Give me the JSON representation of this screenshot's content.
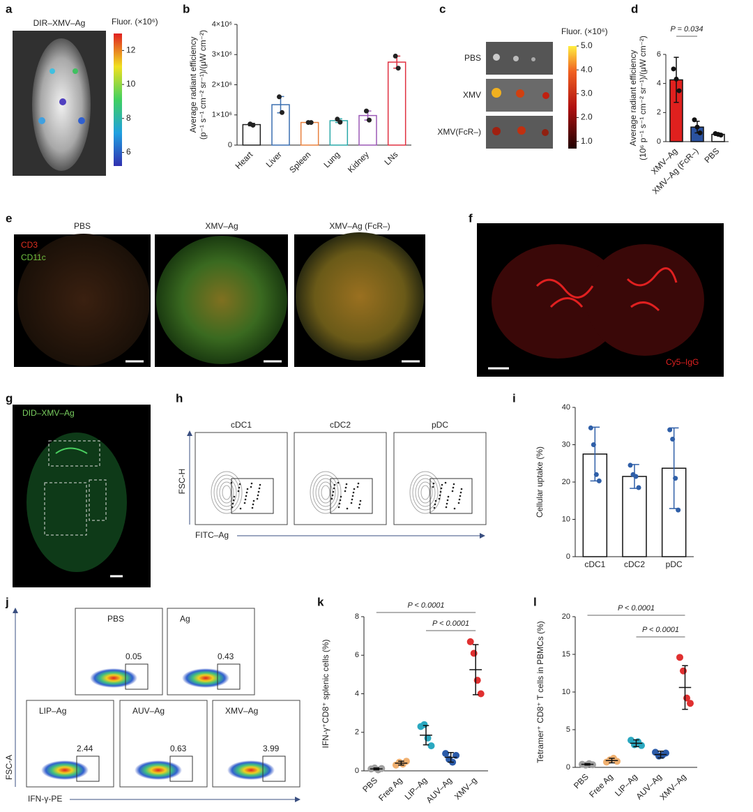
{
  "panels": {
    "a": {
      "label": "a",
      "title": "DIR–XMV–Ag",
      "colorbar": {
        "title": "Fluor. (×10⁶)",
        "lim": [
          5.2,
          13
        ],
        "ticks": [
          6,
          8,
          10,
          12
        ]
      }
    },
    "c": {
      "label": "c",
      "rows": [
        "PBS",
        "XMV",
        "XMV(FcR–)"
      ],
      "colorbar": {
        "title": "Fluor. (×10⁶)",
        "lim": [
          0.7,
          5.0
        ],
        "ticks": [
          {
            "value": 1,
            "label": "1.0"
          },
          {
            "value": 2,
            "label": "2.0"
          },
          {
            "value": 3,
            "label": "3.0"
          },
          {
            "value": 4,
            "label": "4.0"
          },
          {
            "value": 5,
            "label": "5.0"
          }
        ]
      }
    },
    "e": {
      "label": "e",
      "titles": [
        "PBS",
        "XMV–Ag",
        "XMV–Ag (FcR–)"
      ],
      "stains": [
        "CD3",
        "CD11c"
      ]
    },
    "f": {
      "label": "f",
      "stain": "Cy5–IgG"
    },
    "g": {
      "label": "g",
      "title": "DID–XMV–Ag"
    },
    "h": {
      "label": "h",
      "titles": [
        "cDC1",
        "cDC2",
        "pDC"
      ],
      "ylabel": "FSC-H",
      "xlabel": "FITC–Ag"
    },
    "j": {
      "label": "j",
      "plots": [
        {
          "name": "PBS",
          "value": 0.05
        },
        {
          "name": "Ag",
          "value": 0.43
        },
        {
          "name": "LIP–Ag",
          "value": 2.44
        },
        {
          "name": "AUV–Ag",
          "value": 0.63
        },
        {
          "name": "XMV–Ag",
          "value": 3.99
        }
      ],
      "ylabel": "FSC-A",
      "xlabel": "IFN-γ-PE"
    }
  },
  "chart_data": [
    {
      "type": "bar",
      "panel_label": "b",
      "ylabel": [
        "Average radiant efficiency",
        "(p⁻¹ s⁻¹ cm⁻² sr⁻¹)/(μW cm⁻²)"
      ],
      "categories": [
        "Heart",
        "Liver",
        "Spleen",
        "Lung",
        "Kidney",
        "LNs"
      ],
      "values": [
        680000,
        1340000,
        750000,
        810000,
        980000,
        2750000
      ],
      "errors": [
        40000,
        270000,
        10000,
        60000,
        150000,
        200000
      ],
      "points": [
        [
          700000,
          660000
        ],
        [
          1600000,
          1080000
        ],
        [
          750000,
          750000
        ],
        [
          860000,
          760000
        ],
        [
          1130000,
          830000
        ],
        [
          2950000,
          2550000
        ]
      ],
      "colors": [
        "#222222",
        "#3a6fb0",
        "#e8803e",
        "#2aa9a9",
        "#9b59b6",
        "#e03040"
      ],
      "bar_fill": false,
      "point_color": "#222222",
      "ylim": [
        0,
        4000000
      ],
      "yticks": [
        0,
        {
          "value": 1000000,
          "label": "1×10⁶"
        },
        {
          "value": 2000000,
          "label": "2×10⁶"
        },
        {
          "value": 3000000,
          "label": "3×10⁶"
        },
        {
          "value": 4000000,
          "label": "4×10⁶"
        }
      ]
    },
    {
      "type": "bar",
      "panel_label": "d",
      "ylabel": [
        "Average radiant efficiency",
        "(10⁶ p⁻¹ s⁻¹ cm⁻² sr⁻¹)/(μW cm⁻²)"
      ],
      "categories": [
        "XMV–Ag",
        "XMV–Ag (FcR–)",
        "PBS"
      ],
      "values": [
        4.25,
        1.0,
        0.5
      ],
      "errors": [
        1.55,
        0.4,
        0.08
      ],
      "points": [
        [
          5.0,
          4.3,
          3.5
        ],
        [
          1.5,
          1.0,
          0.6
        ],
        [
          0.55,
          0.5,
          0.45
        ]
      ],
      "colors": [
        "#e0201e",
        "#2a52a0",
        "#ffffff"
      ],
      "bar_fill": true,
      "outline_color": "#111111",
      "point_color": "#111111",
      "error_color": "#111111",
      "ylim": [
        0,
        6
      ],
      "yticks": [
        0,
        2,
        4,
        6
      ],
      "annotations": [
        "P = 0.034"
      ]
    },
    {
      "type": "bar",
      "panel_label": "i",
      "ylabel": [
        "Cellular uptake (%)"
      ],
      "categories": [
        "cDC1",
        "cDC2",
        "pDC"
      ],
      "values": [
        27.5,
        21.5,
        23.7
      ],
      "errors": [
        7.2,
        3.2,
        10.8
      ],
      "points": [
        [
          34.5,
          30,
          22,
          20.3
        ],
        [
          24.5,
          22,
          21.5,
          18.5
        ],
        [
          34,
          31.5,
          21,
          12.5
        ]
      ],
      "colors": [
        "#111111",
        "#111111",
        "#111111"
      ],
      "bar_fill": false,
      "point_color": "#2f5fa8",
      "error_color": "#2f5fa8",
      "ylim": [
        0,
        40
      ],
      "yticks": [
        0,
        10,
        20,
        30,
        40
      ]
    },
    {
      "type": "strip",
      "panel_label": "k",
      "ylabel": [
        "IFN-γ⁺CD8⁺ splenic cells (%)"
      ],
      "categories": [
        "PBS",
        "Free Ag",
        "LIP–Ag",
        "AUV–Ag",
        "XMV–g"
      ],
      "values": [
        0.1,
        0.4,
        1.85,
        0.7,
        5.25
      ],
      "errors": [
        0.05,
        0.1,
        0.5,
        0.25,
        1.3
      ],
      "points": [
        [
          0.1,
          0.15,
          0.05,
          0.12
        ],
        [
          0.3,
          0.45,
          0.35,
          0.5
        ],
        [
          2.3,
          2.4,
          1.7,
          1.3
        ],
        [
          0.9,
          0.6,
          0.45,
          0.8
        ],
        [
          6.7,
          6.1,
          4.7,
          4.0
        ]
      ],
      "colors": [
        "#a0a0a0",
        "#f0b070",
        "#2aa8c0",
        "#2a5aa8",
        "#e03030"
      ],
      "error_color": "#111111",
      "ylim": [
        0,
        8
      ],
      "yticks": [
        0,
        2,
        4,
        6,
        8
      ],
      "annotations": [
        "P < 0.0001",
        "P < 0.0001"
      ]
    },
    {
      "type": "strip",
      "panel_label": "l",
      "ylabel": [
        "Tetramer⁺ CD8⁺ T cells in PBMCs (%)"
      ],
      "categories": [
        "PBS",
        "Free Ag",
        "LIP–Ag",
        "AUV–Ag",
        "XMV–Ag"
      ],
      "values": [
        0.4,
        0.9,
        3.2,
        1.7,
        10.6
      ],
      "errors": [
        0.1,
        0.3,
        0.45,
        0.45,
        2.9
      ],
      "points": [
        [
          0.4,
          0.3,
          0.5,
          0.35
        ],
        [
          0.7,
          1.0,
          1.2,
          0.8
        ],
        [
          3.6,
          3.0,
          3.4,
          2.9
        ],
        [
          2.0,
          1.5,
          1.6,
          1.9
        ],
        [
          14.6,
          12.8,
          9.2,
          8.5
        ]
      ],
      "colors": [
        "#a0a0a0",
        "#f0b070",
        "#2aa8c0",
        "#2a5aa8",
        "#e03030"
      ],
      "error_color": "#111111",
      "ylim": [
        0,
        20
      ],
      "yticks": [
        0,
        5,
        10,
        15,
        20
      ],
      "annotations": [
        "P < 0.0001",
        "P < 0.0001"
      ]
    }
  ]
}
